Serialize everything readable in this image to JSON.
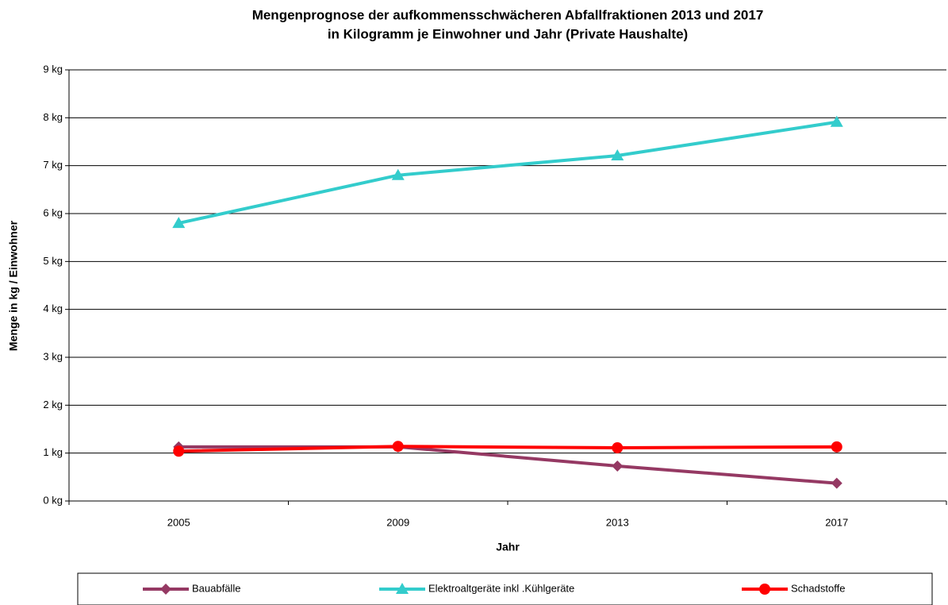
{
  "chart_data": {
    "type": "line",
    "title": [
      "Mengenprognose der aufkommensschwächeren Abfallfraktionen 2013 und 2017",
      "in Kilogramm je Einwohner und Jahr (Private Haushalte)"
    ],
    "x_label": "Jahr",
    "y_label": "Menge in kg / Einwohner",
    "categories": [
      "2005",
      "2009",
      "2013",
      "2017"
    ],
    "series": [
      {
        "name": "Bauabfälle",
        "color": "#953963",
        "marker": "diamond",
        "values": [
          1.13,
          1.13,
          0.73,
          0.37
        ]
      },
      {
        "name": "Elektroaltgeräte inkl .Kühlgeräte",
        "color": "#33CCCC",
        "marker": "triangle",
        "values": [
          5.8,
          6.8,
          7.21,
          7.91
        ]
      },
      {
        "name": "Schadstoffe",
        "color": "#FF0000",
        "marker": "circle",
        "values": [
          1.04,
          1.14,
          1.11,
          1.13
        ]
      }
    ],
    "ylim": [
      0,
      9
    ],
    "yticks": [
      {
        "value": 0,
        "label": "0 kg"
      },
      {
        "value": 1,
        "label": "1 kg"
      },
      {
        "value": 2,
        "label": "2 kg"
      },
      {
        "value": 3,
        "label": "3 kg"
      },
      {
        "value": 4,
        "label": "4 kg"
      },
      {
        "value": 5,
        "label": "5 kg"
      },
      {
        "value": 6,
        "label": "6 kg"
      },
      {
        "value": 7,
        "label": "7 kg"
      },
      {
        "value": 8,
        "label": "8 kg"
      },
      {
        "value": 9,
        "label": "9 kg"
      }
    ],
    "grid": true,
    "legend": "bottom"
  }
}
